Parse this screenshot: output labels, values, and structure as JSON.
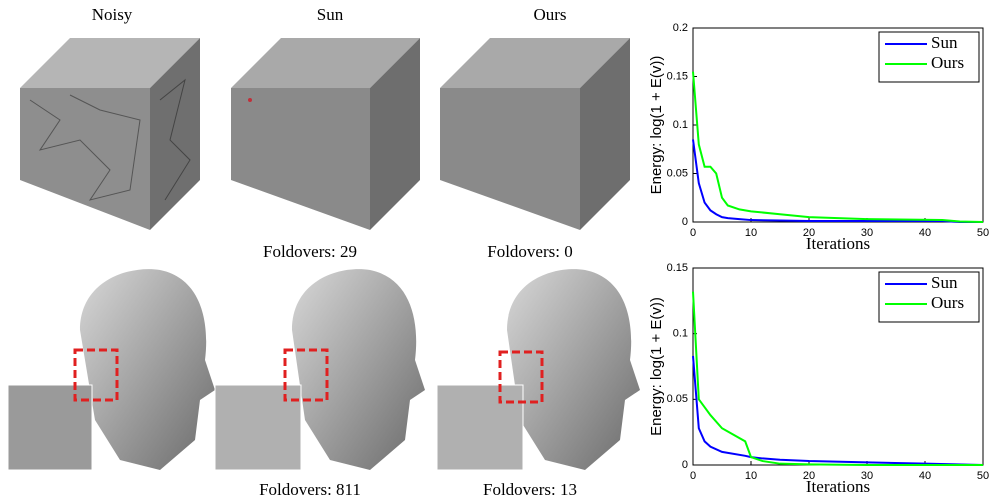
{
  "columns": [
    "Noisy",
    "Sun",
    "Ours"
  ],
  "foldovers": [
    "Foldovers: 29",
    "Foldovers: 0",
    "Foldovers: 811",
    "Foldovers: 13"
  ],
  "chart_data": [
    {
      "type": "line",
      "y_label": "Energy:  log(1 + E(v))",
      "x_label": "Iterations",
      "x": [
        0,
        1,
        2,
        3,
        4,
        5,
        6,
        8,
        10,
        15,
        20,
        30,
        43,
        46,
        50
      ],
      "series": [
        {
          "name": "Sun",
          "color": "#0000ff",
          "values": [
            0.085,
            0.04,
            0.02,
            0.012,
            0.008,
            0.005,
            0.004,
            0.003,
            0.002,
            0.0015,
            0.001,
            0.001,
            0.001,
            0,
            0
          ]
        },
        {
          "name": "Ours",
          "color": "#00ff00",
          "values": [
            0.155,
            0.08,
            0.057,
            0.057,
            0.05,
            0.025,
            0.017,
            0.013,
            0.011,
            0.008,
            0.005,
            0.003,
            0.002,
            0.0005,
            0
          ]
        }
      ],
      "xlim": [
        0,
        50
      ],
      "xticks": [
        0,
        10,
        20,
        30,
        40,
        50
      ],
      "ylim": [
        0,
        0.2
      ],
      "yticks": [
        0,
        0.05,
        0.1,
        0.15,
        0.2
      ],
      "legend": "top-right"
    },
    {
      "type": "line",
      "y_label": "Energy:  log(1 + E(v))",
      "x_label": "Iterations",
      "x": [
        0,
        1,
        2,
        3,
        5,
        9,
        10,
        12,
        15,
        20,
        30,
        40,
        50
      ],
      "series": [
        {
          "name": "Sun",
          "color": "#0000ff",
          "values": [
            0.083,
            0.028,
            0.018,
            0.014,
            0.01,
            0.007,
            0.006,
            0.005,
            0.004,
            0.003,
            0.002,
            0.001,
            0
          ]
        },
        {
          "name": "Ours",
          "color": "#00ff00",
          "values": [
            0.132,
            0.05,
            0.044,
            0.038,
            0.028,
            0.018,
            0.006,
            0.003,
            0.001,
            0.0005,
            0,
            0,
            0
          ]
        }
      ],
      "xlim": [
        0,
        50
      ],
      "xticks": [
        0,
        10,
        20,
        30,
        40,
        50
      ],
      "ylim": [
        0,
        0.15
      ],
      "yticks": [
        0,
        0.05,
        0.1,
        0.15
      ],
      "legend": "top-right"
    }
  ]
}
